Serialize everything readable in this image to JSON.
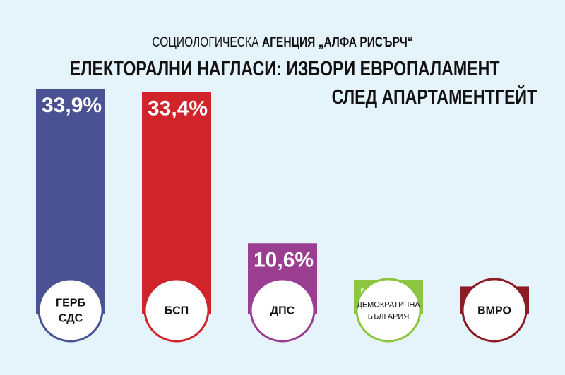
{
  "header": {
    "subtitle_light": "СОЦИОЛОГИЧЕСКА",
    "subtitle_bold": "АГЕНЦИЯ „АЛФА РИСЪРЧ“",
    "title_line1": "ЕЛЕКТОРАЛНИ НАГЛАСИ: ИЗБОРИ ЕВРОПАЛАМЕНТ",
    "title_line2": "СЛЕД АПАРТАМЕНТГЕЙТ"
  },
  "chart_data": {
    "type": "bar",
    "title": "ЕЛЕКТОРАЛНИ НАГЛАСИ: ИЗБОРИ ЕВРОПАЛАМЕНТ СЛЕД АПАРТАМЕНТГЕЙТ",
    "subtitle": "СОЦИОЛОГИЧЕСКА АГЕНЦИЯ „АЛФА РИСЪРЧ“",
    "categories": [
      "ГЕРБ СДС",
      "БСП",
      "ДПС",
      "ДЕМОКРАТИЧНА БЪЛГАРИЯ",
      "ВМРО"
    ],
    "category_lines": [
      [
        "ГЕРБ",
        "СДС"
      ],
      [
        "БСП"
      ],
      [
        "ДПС"
      ],
      [
        "ДЕМОКРАТИЧНА",
        "БЪЛГАРИЯ"
      ],
      [
        "ВМРО"
      ]
    ],
    "values": [
      33.9,
      33.4,
      10.6,
      5.1,
      4.1
    ],
    "value_labels": [
      "33,9%",
      "33,4%",
      "10,6%",
      "5,1%",
      "4.1%"
    ],
    "colors": [
      "#4a5294",
      "#d1232a",
      "#9b3e92",
      "#8cc63f",
      "#8c1c24"
    ],
    "xlabel": "",
    "ylabel": "",
    "ylim": [
      0,
      35
    ],
    "grid": false,
    "legend": "none"
  }
}
